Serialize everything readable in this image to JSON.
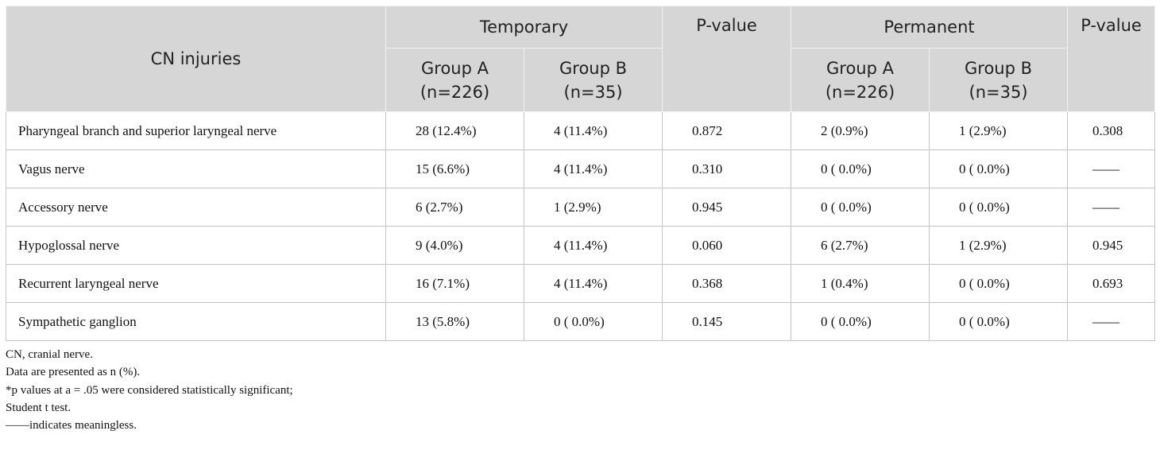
{
  "table": {
    "header": {
      "cn": "CN injuries",
      "temporary": "Temporary",
      "pvalue_temporary": "P-value",
      "permanent": "Permanent",
      "pvalue_permanent": "P-value",
      "groups": [
        [
          "Group A",
          "(n=226)"
        ],
        [
          "Group B",
          "(n=35)"
        ],
        [
          "Group A",
          "(n=226)"
        ],
        [
          "Group B",
          "(n=35)"
        ]
      ]
    },
    "rows": [
      [
        "Pharyngeal branch and superior laryngeal nerve",
        "28 (12.4%)",
        "4 (11.4%)",
        "0.872",
        "2 (0.9%)",
        "1 (2.9%)",
        "0.308"
      ],
      [
        "Vagus nerve",
        "15 (6.6%)",
        "4 (11.4%)",
        "0.310",
        "0 ( 0.0%)",
        "0 ( 0.0%)",
        "——"
      ],
      [
        "Accessory nerve",
        "6 (2.7%)",
        "1 (2.9%)",
        "0.945",
        "0 ( 0.0%)",
        "0 ( 0.0%)",
        "——"
      ],
      [
        "Hypoglossal nerve",
        "9 (4.0%)",
        "4 (11.4%)",
        "0.060",
        "6 (2.7%)",
        "1 (2.9%)",
        "0.945"
      ],
      [
        "Recurrent laryngeal nerve",
        "16 (7.1%)",
        "4 (11.4%)",
        "0.368",
        "1 (0.4%)",
        "0 ( 0.0%)",
        "0.693"
      ],
      [
        "Sympathetic ganglion",
        "13 (5.8%)",
        "0 ( 0.0%)",
        "0.145",
        "0 ( 0.0%)",
        "0 ( 0.0%)",
        "——"
      ]
    ]
  },
  "notes": [
    "CN, cranial nerve.",
    "Data are presented as n (%).",
    "*p values at a = .05 were considered statistically significant;",
    "Student t test.",
    "——indicates meaningless."
  ]
}
